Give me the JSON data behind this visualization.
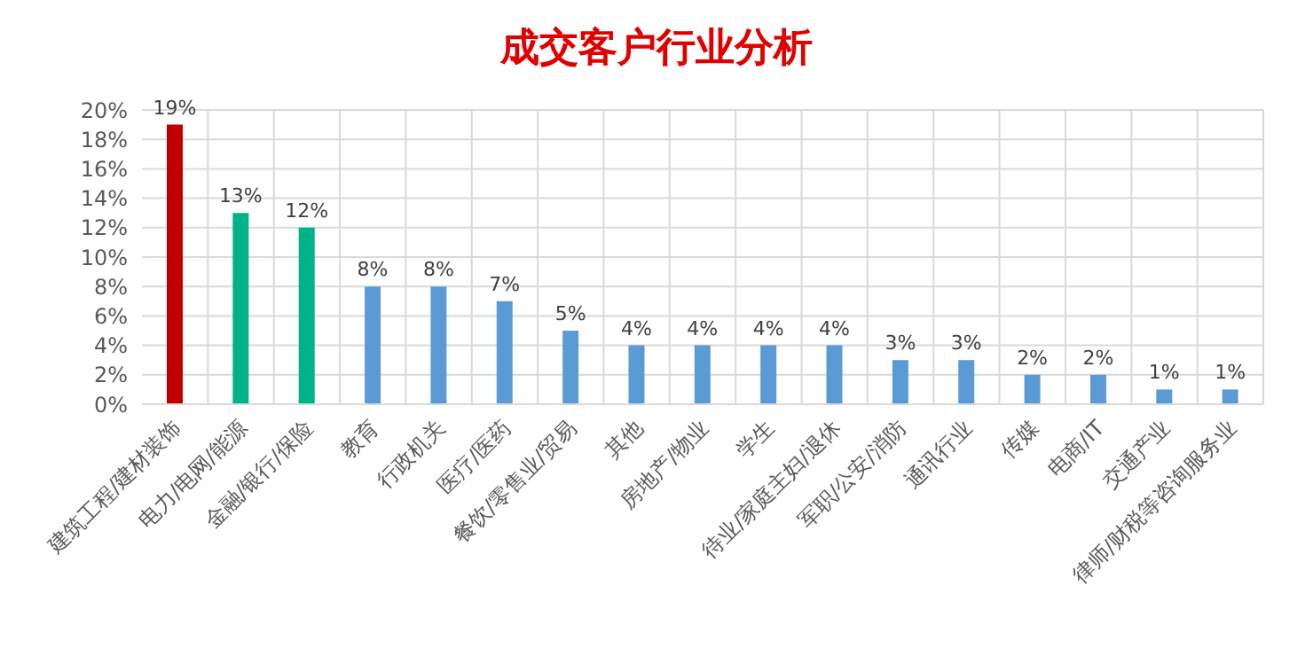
{
  "chart_data": {
    "type": "bar",
    "title": "成交客户行业分析",
    "categories": [
      "建筑工程/建材装饰",
      "电力/电网/能源",
      "金融/银行/保险",
      "教育",
      "行政机关",
      "医疗/医药",
      "餐饮/零售业/贸易",
      "其他",
      "房地产/物业",
      "学生",
      "待业/家庭主妇/退休",
      "军职/公安/消防",
      "通讯行业",
      "传媒",
      "电商/IT",
      "交通产业",
      "律师/财税等咨询服务业"
    ],
    "values": [
      19,
      13,
      12,
      8,
      8,
      7,
      5,
      4,
      4,
      4,
      4,
      3,
      3,
      2,
      2,
      1,
      1
    ],
    "colors": [
      "#c00000",
      "#00b386",
      "#00b386",
      "#5b9bd5",
      "#5b9bd5",
      "#5b9bd5",
      "#5b9bd5",
      "#5b9bd5",
      "#5b9bd5",
      "#5b9bd5",
      "#5b9bd5",
      "#5b9bd5",
      "#5b9bd5",
      "#5b9bd5",
      "#5b9bd5",
      "#5b9bd5",
      "#5b9bd5"
    ],
    "value_labels": [
      "19%",
      "13%",
      "12%",
      "8%",
      "8%",
      "7%",
      "5%",
      "4%",
      "4%",
      "4%",
      "4%",
      "3%",
      "3%",
      "2%",
      "2%",
      "1%",
      "1%"
    ],
    "ylim": [
      0,
      20
    ],
    "yticks": [
      {
        "value": 0,
        "label": "0%"
      },
      {
        "value": 2,
        "label": "2%"
      },
      {
        "value": 4,
        "label": "4%"
      },
      {
        "value": 6,
        "label": "6%"
      },
      {
        "value": 8,
        "label": "8%"
      },
      {
        "value": 10,
        "label": "10%"
      },
      {
        "value": 12,
        "label": "12%"
      },
      {
        "value": 14,
        "label": "14%"
      },
      {
        "value": 16,
        "label": "16%"
      },
      {
        "value": 18,
        "label": "18%"
      },
      {
        "value": 20,
        "label": "20%"
      }
    ],
    "grid": true
  }
}
